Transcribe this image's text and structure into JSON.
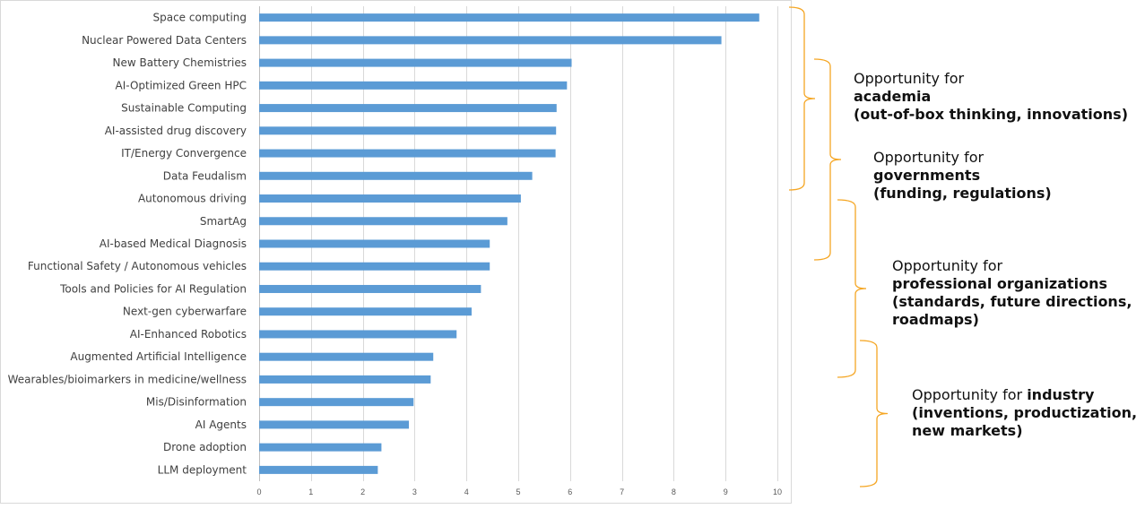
{
  "chart_data": {
    "type": "bar",
    "orientation": "horizontal",
    "categories": [
      "Space computing",
      "Nuclear Powered Data Centers",
      "New Battery Chemistries",
      "AI-Optimized Green HPC",
      "Sustainable Computing",
      "AI-assisted drug discovery",
      "IT/Energy Convergence",
      "Data Feudalism",
      "Autonomous driving",
      "SmartAg",
      "AI-based Medical Diagnosis",
      "Functional Safety / Autonomous vehicles",
      "Tools and Policies for AI Regulation",
      "Next-gen cyberwarfare",
      "AI-Enhanced Robotics",
      "Augmented Artificial Intelligence",
      "Wearables/bioimarkers in medicine/wellness",
      "Mis/Disinformation",
      "AI Agents",
      "Drone adoption",
      "LLM deployment"
    ],
    "values": [
      9.65,
      8.92,
      6.03,
      5.94,
      5.74,
      5.73,
      5.72,
      5.27,
      5.05,
      4.79,
      4.45,
      4.45,
      4.28,
      4.1,
      3.81,
      3.36,
      3.31,
      2.98,
      2.89,
      2.36,
      2.29
    ],
    "xlim": [
      0,
      10
    ],
    "xticks": [
      "0",
      "1",
      "2",
      "3",
      "4",
      "5",
      "6",
      "7",
      "8",
      "9",
      "10"
    ],
    "grid": true,
    "bar_color": "#5b9bd5",
    "title": "",
    "xlabel": "",
    "ylabel": ""
  },
  "annotations": [
    {
      "line1": "Opportunity for",
      "bold_inline": "",
      "bold_lines": [
        "academia",
        "(out-of-box thinking, innovations)"
      ]
    },
    {
      "line1": "Opportunity for",
      "bold_inline": "",
      "bold_lines": [
        "governments",
        "(funding, regulations)"
      ]
    },
    {
      "line1": "Opportunity for",
      "bold_inline": "",
      "bold_lines": [
        "professional organizations",
        "(standards, future directions,",
        "roadmaps)"
      ]
    },
    {
      "line1": "Opportunity for ",
      "bold_inline": "industry",
      "bold_lines": [
        "(inventions, productization,",
        "new markets)"
      ]
    }
  ],
  "bracket_color": "#f5a623"
}
